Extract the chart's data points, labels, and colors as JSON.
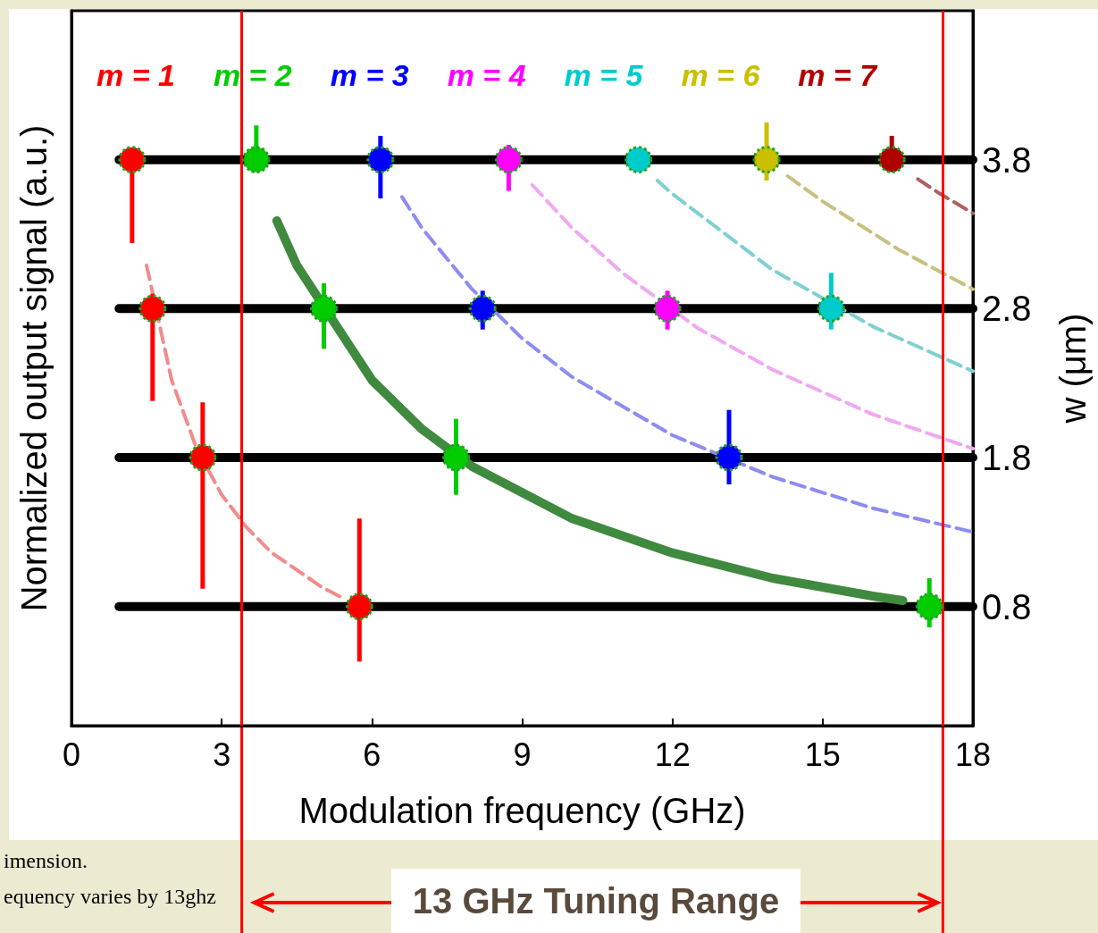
{
  "chart_data": {
    "type": "scatter",
    "xlabel": "Modulation frequency (GHz)",
    "ylabel": "Normalized output signal (a.u.)",
    "y2label": "w (μm)",
    "xlim": [
      0,
      18
    ],
    "xticks": [
      0,
      3,
      6,
      9,
      12,
      15,
      18
    ],
    "y2lim": [
      0,
      4.8
    ],
    "y2ticks": [
      0.8,
      1.8,
      2.8,
      3.8
    ],
    "legend": "top",
    "marker": "circle",
    "grid": false,
    "series": [
      {
        "type": "line",
        "marker": "none",
        "color": "#000000",
        "x": [
          0.95,
          18
        ],
        "values": [
          3.8,
          3.8
        ],
        "axis": "y2"
      },
      {
        "type": "line",
        "marker": "none",
        "color": "#000000",
        "x": [
          0.95,
          18
        ],
        "values": [
          2.8,
          2.8
        ],
        "axis": "y2"
      },
      {
        "type": "line",
        "marker": "none",
        "color": "#000000",
        "x": [
          0.95,
          18
        ],
        "values": [
          1.8,
          1.8
        ],
        "axis": "y2"
      },
      {
        "type": "line",
        "marker": "none",
        "color": "#000000",
        "x": [
          0.95,
          18
        ],
        "values": [
          0.8,
          0.8
        ],
        "axis": "y2"
      },
      {
        "type": "line",
        "marker": "none",
        "color": "#f08c8c",
        "line_style": "dashed",
        "axis": "y2",
        "x": [
          1.5,
          2,
          2.5,
          3,
          3.5,
          4,
          5,
          5.4
        ],
        "values": [
          3.09,
          2.32,
          1.86,
          1.55,
          1.33,
          1.16,
          0.93,
          0.86
        ]
      },
      {
        "type": "line",
        "marker": "none",
        "color": "#3f8a3f",
        "line_style": "solid",
        "axis": "y2",
        "x": [
          4.1,
          4.5,
          6,
          7,
          8,
          10,
          12,
          14,
          16,
          16.6
        ],
        "values": [
          3.39,
          3.09,
          2.32,
          1.99,
          1.74,
          1.39,
          1.16,
          0.99,
          0.87,
          0.84
        ]
      },
      {
        "type": "line",
        "marker": "none",
        "color": "#8c8cf0",
        "line_style": "dashed",
        "axis": "y2",
        "x": [
          6.6,
          7,
          8,
          9,
          10,
          12,
          14,
          16,
          18
        ],
        "values": [
          3.55,
          3.34,
          2.93,
          2.6,
          2.34,
          1.95,
          1.67,
          1.46,
          1.3
        ]
      },
      {
        "type": "line",
        "marker": "none",
        "color": "#f0a8f0",
        "line_style": "dashed",
        "axis": "y2",
        "x": [
          9.2,
          10,
          11,
          12.5,
          14,
          16,
          18
        ],
        "values": [
          3.63,
          3.34,
          3.04,
          2.67,
          2.39,
          2.09,
          1.86
        ]
      },
      {
        "type": "line",
        "marker": "none",
        "color": "#80d0d0",
        "line_style": "dashed",
        "axis": "y2",
        "x": [
          11.7,
          12,
          14,
          16,
          18
        ],
        "values": [
          3.66,
          3.57,
          3.06,
          2.68,
          2.38
        ]
      },
      {
        "type": "line",
        "marker": "none",
        "color": "#c8c080",
        "line_style": "dashed",
        "axis": "y2",
        "x": [
          14.3,
          15,
          16.5,
          18
        ],
        "values": [
          3.69,
          3.52,
          3.2,
          2.93
        ]
      },
      {
        "type": "line",
        "marker": "none",
        "color": "#b06060",
        "line_style": "dashed",
        "axis": "y2",
        "x": [
          16.9,
          17.3,
          18
        ],
        "values": [
          3.67,
          3.58,
          3.44
        ]
      },
      {
        "name": "m = 1",
        "color": "#ff0000",
        "axis": "y2",
        "x": [
          1.21,
          1.62,
          2.62,
          5.75
        ],
        "values": [
          3.8,
          2.8,
          1.8,
          0.8
        ],
        "errors": [
          [
            3.24,
            3.8
          ],
          [
            2.18,
            2.9
          ],
          [
            0.92,
            2.17
          ],
          [
            0.43,
            1.39
          ]
        ]
      },
      {
        "name": "m = 2",
        "color": "#00cc00",
        "axis": "y2",
        "x": [
          3.69,
          5.04,
          7.68,
          17.13
        ],
        "values": [
          3.8,
          2.8,
          1.8,
          0.8
        ],
        "errors": [
          [
            3.72,
            4.03
          ],
          [
            2.53,
            2.97
          ],
          [
            1.55,
            2.06
          ],
          [
            0.66,
            0.99
          ]
        ]
      },
      {
        "name": "m = 3",
        "color": "#0000ff",
        "axis": "y2",
        "x": [
          6.17,
          8.21,
          13.13
        ],
        "values": [
          3.8,
          2.8,
          1.8
        ],
        "errors": [
          [
            3.54,
            3.96
          ],
          [
            2.66,
            2.92
          ],
          [
            1.62,
            2.12
          ]
        ]
      },
      {
        "name": "m = 4",
        "color": "#ff00ff",
        "axis": "y2",
        "x": [
          8.73,
          11.9
        ],
        "values": [
          3.8,
          2.8
        ],
        "errors": [
          [
            3.59,
            3.9
          ],
          [
            2.66,
            2.92
          ]
        ]
      },
      {
        "name": "m = 5",
        "color": "#00cccc",
        "axis": "y2",
        "x": [
          11.32,
          15.17
        ],
        "values": [
          3.8,
          2.8
        ],
        "errors": [
          null,
          [
            2.66,
            3.04
          ]
        ]
      },
      {
        "name": "m = 6",
        "color": "#c8c000",
        "axis": "y2",
        "x": [
          13.88
        ],
        "values": [
          3.8
        ],
        "errors": [
          [
            3.66,
            4.05
          ]
        ]
      },
      {
        "name": "m = 7",
        "color": "#b00000",
        "axis": "y2",
        "x": [
          16.38
        ],
        "values": [
          3.8
        ],
        "errors": [
          [
            3.72,
            3.96
          ]
        ]
      }
    ],
    "ref_lines": [
      {
        "axis": "x",
        "value": 3.4,
        "label": null,
        "color": "#ff0000"
      },
      {
        "axis": "x",
        "value": 17.4,
        "label": null,
        "color": "#ff0000"
      }
    ],
    "annotations": [
      "imension.",
      "equency varies by 13ghz",
      "13 GHz Tuning Range"
    ]
  }
}
